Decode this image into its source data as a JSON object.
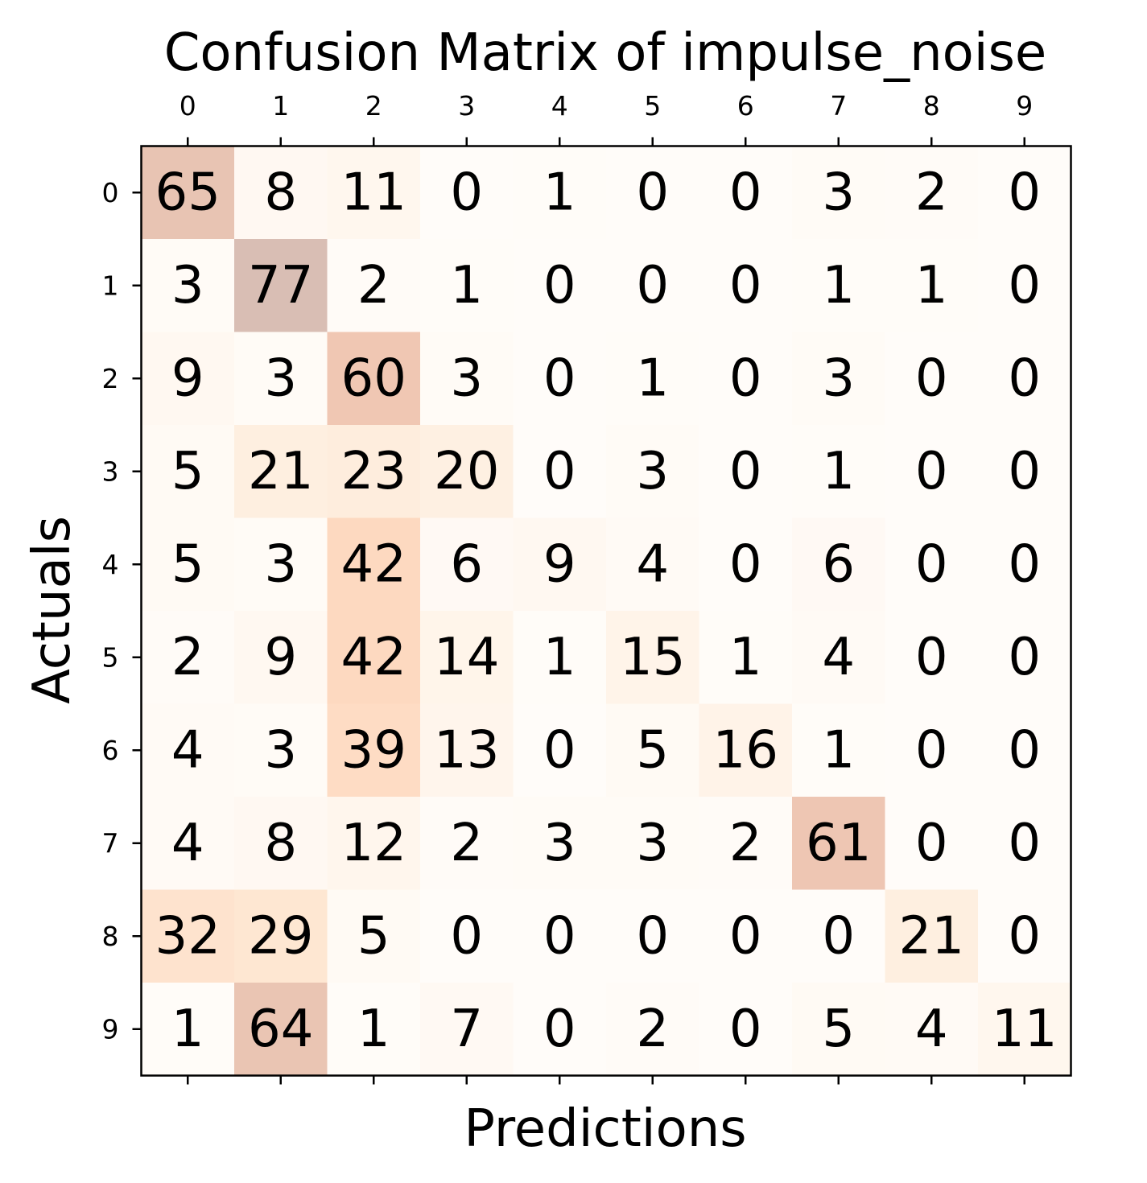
{
  "chart_data": {
    "type": "heatmap",
    "title": "Confusion Matrix of impulse_noise",
    "xlabel": "Predictions",
    "ylabel": "Actuals",
    "x_tick_labels": [
      "0",
      "1",
      "2",
      "3",
      "4",
      "5",
      "6",
      "7",
      "8",
      "9"
    ],
    "y_tick_labels": [
      "0",
      "1",
      "2",
      "3",
      "4",
      "5",
      "6",
      "7",
      "8",
      "9"
    ],
    "x_ticks_position": "top",
    "grid": false,
    "colorbar": false,
    "colormap": "Oranges",
    "cell_alpha": 0.3,
    "matrix": [
      [
        65,
        8,
        11,
        0,
        1,
        0,
        0,
        3,
        2,
        0
      ],
      [
        3,
        77,
        2,
        1,
        0,
        0,
        0,
        1,
        1,
        0
      ],
      [
        9,
        3,
        60,
        3,
        0,
        1,
        0,
        3,
        0,
        0
      ],
      [
        5,
        21,
        23,
        20,
        0,
        3,
        0,
        1,
        0,
        0
      ],
      [
        5,
        3,
        42,
        6,
        9,
        4,
        0,
        6,
        0,
        0
      ],
      [
        2,
        9,
        42,
        14,
        1,
        15,
        1,
        4,
        0,
        0
      ],
      [
        4,
        3,
        39,
        13,
        0,
        5,
        16,
        1,
        0,
        0
      ],
      [
        4,
        8,
        12,
        2,
        3,
        3,
        2,
        61,
        0,
        0
      ],
      [
        32,
        29,
        5,
        0,
        0,
        0,
        0,
        0,
        21,
        0
      ],
      [
        1,
        64,
        1,
        7,
        0,
        2,
        0,
        5,
        4,
        11
      ]
    ]
  }
}
